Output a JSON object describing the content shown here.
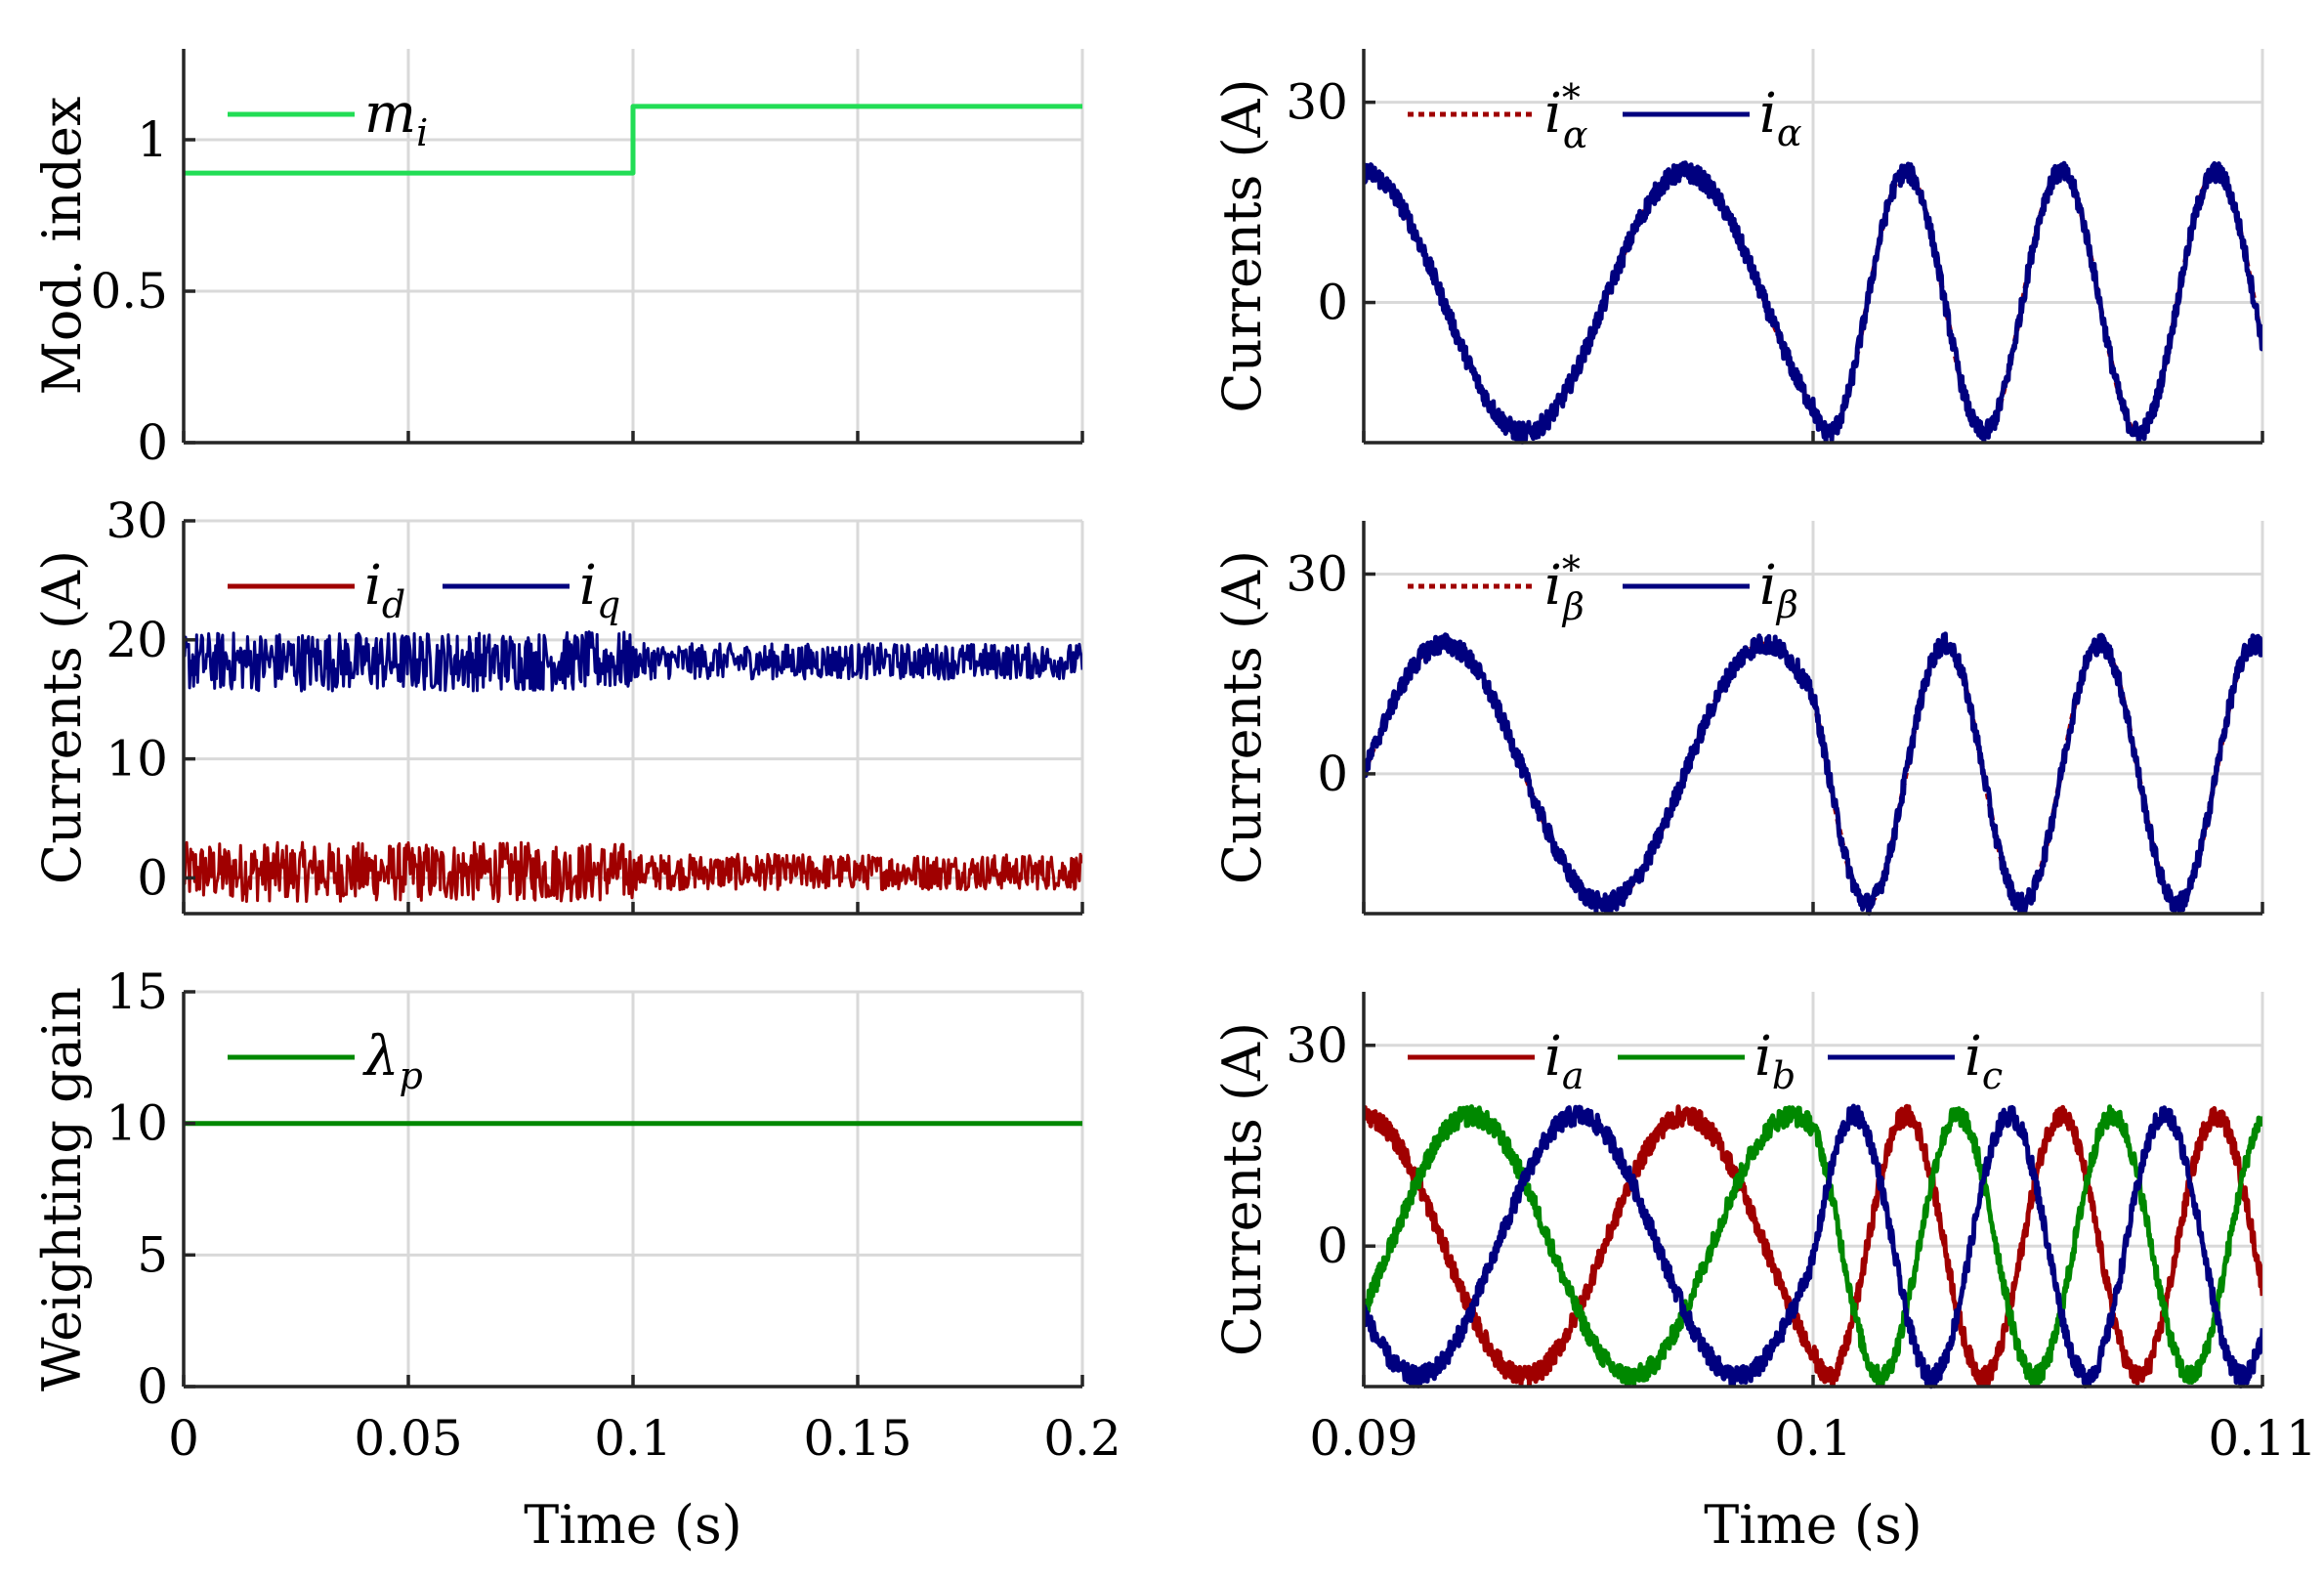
{
  "colors": {
    "red": "#a00000",
    "blue": "#00007f",
    "green": "#008800",
    "light_green": "#22dd55",
    "grid": "#d9d9d9"
  },
  "chart_data": [
    {
      "id": "mod_index",
      "type": "line",
      "ylabel": "Mod. index",
      "xlim": [
        0,
        0.2
      ],
      "ylim": [
        0,
        1.3
      ],
      "yticks": [
        0,
        0.5,
        1
      ],
      "ytick_labels": [
        "0",
        "0.5",
        "1"
      ],
      "xticks": [
        0,
        0.05,
        0.1,
        0.15,
        0.2
      ],
      "show_xticklabels": false,
      "legend": [
        "m_i"
      ],
      "series": [
        {
          "name": "m_i",
          "color": "light_green",
          "kind": "step",
          "x": [
            0,
            0.1,
            0.1,
            0.2
          ],
          "values": [
            0.89,
            0.89,
            1.11,
            1.11
          ]
        }
      ]
    },
    {
      "id": "dq_currents",
      "type": "line",
      "ylabel": "Currents (A)",
      "xlim": [
        0,
        0.2
      ],
      "ylim": [
        -3,
        30
      ],
      "yticks": [
        0,
        10,
        20,
        30
      ],
      "ytick_labels": [
        "0",
        "10",
        "20",
        "30"
      ],
      "xticks": [
        0,
        0.05,
        0.1,
        0.15,
        0.2
      ],
      "show_xticklabels": false,
      "legend": [
        "i_d",
        "i_q"
      ],
      "series": [
        {
          "name": "i_d",
          "color": "red",
          "kind": "noisy",
          "mean": 0.5,
          "noise_before": 2.5,
          "noise_after": 1.5,
          "change_at": 0.1
        },
        {
          "name": "i_q",
          "color": "blue",
          "kind": "noisy",
          "mean": 18.2,
          "noise_before": 2.5,
          "noise_after": 1.5,
          "change_at": 0.1
        }
      ]
    },
    {
      "id": "weighting_gain",
      "type": "line",
      "ylabel": "Weighting gain",
      "xlabel": "Time (s)",
      "xlim": [
        0,
        0.2
      ],
      "ylim": [
        0,
        15
      ],
      "yticks": [
        0,
        5,
        10,
        15
      ],
      "ytick_labels": [
        "0",
        "5",
        "10",
        "15"
      ],
      "xticks": [
        0,
        0.05,
        0.1,
        0.15,
        0.2
      ],
      "xtick_labels": [
        "0",
        "0.05",
        "0.1",
        "0.15",
        "0.2"
      ],
      "show_xticklabels": true,
      "legend": [
        "λ_p"
      ],
      "series": [
        {
          "name": "λ_p",
          "color": "green",
          "kind": "step",
          "x": [
            0,
            0.2
          ],
          "values": [
            10,
            10
          ]
        }
      ]
    },
    {
      "id": "alpha_currents",
      "type": "line",
      "ylabel": "Currents (A)",
      "xlim": [
        0.09,
        0.11
      ],
      "ylim": [
        -21,
        38
      ],
      "yticks": [
        0,
        30
      ],
      "ytick_labels": [
        "0",
        "30"
      ],
      "xticks": [
        0.09,
        0.1,
        0.11
      ],
      "show_xticklabels": false,
      "legend": [
        "i*_α",
        "i_α"
      ],
      "series": [
        {
          "name": "i*_α",
          "color": "red",
          "kind": "sine",
          "amp": 19.5,
          "phase_deg": 90,
          "dashed": true,
          "noise": 0
        },
        {
          "name": "i_α",
          "color": "blue",
          "kind": "sine",
          "amp": 19.5,
          "phase_deg": 90,
          "dashed": false,
          "noise": 1.5
        }
      ],
      "freq_before_hz": 140,
      "freq_after_hz": 290,
      "change_at": 0.1
    },
    {
      "id": "beta_currents",
      "type": "line",
      "ylabel": "Currents (A)",
      "xlim": [
        0.09,
        0.11
      ],
      "ylim": [
        -21,
        38
      ],
      "yticks": [
        0,
        30
      ],
      "ytick_labels": [
        "0",
        "30"
      ],
      "xticks": [
        0.09,
        0.1,
        0.11
      ],
      "show_xticklabels": false,
      "legend": [
        "i*_β",
        "i_β"
      ],
      "series": [
        {
          "name": "i*_β",
          "color": "red",
          "kind": "sine",
          "amp": 19.5,
          "phase_deg": 0,
          "dashed": true,
          "noise": 0
        },
        {
          "name": "i_β",
          "color": "blue",
          "kind": "sine",
          "amp": 19.5,
          "phase_deg": 0,
          "dashed": false,
          "noise": 1.5
        }
      ],
      "freq_before_hz": 140,
      "freq_after_hz": 290,
      "change_at": 0.1
    },
    {
      "id": "abc_currents",
      "type": "line",
      "ylabel": "Currents (A)",
      "xlabel": "Time (s)",
      "xlim": [
        0.09,
        0.11
      ],
      "ylim": [
        -21,
        38
      ],
      "yticks": [
        0,
        30
      ],
      "ytick_labels": [
        "0",
        "30"
      ],
      "xticks": [
        0.09,
        0.1,
        0.11
      ],
      "xtick_labels": [
        "0.09",
        "0.1",
        "0.11"
      ],
      "show_xticklabels": true,
      "legend": [
        "i_a",
        "i_b",
        "i_c"
      ],
      "series": [
        {
          "name": "i_a",
          "color": "red",
          "kind": "sine",
          "amp": 19.5,
          "phase_deg": 90,
          "dashed": false,
          "noise": 1.5
        },
        {
          "name": "i_b",
          "color": "green",
          "kind": "sine",
          "amp": 19.5,
          "phase_deg": -30,
          "dashed": false,
          "noise": 1.5
        },
        {
          "name": "i_c",
          "color": "blue",
          "kind": "sine",
          "amp": 19.5,
          "phase_deg": 210,
          "dashed": false,
          "noise": 1.5
        }
      ],
      "freq_before_hz": 140,
      "freq_after_hz": 290,
      "change_at": 0.1
    }
  ]
}
